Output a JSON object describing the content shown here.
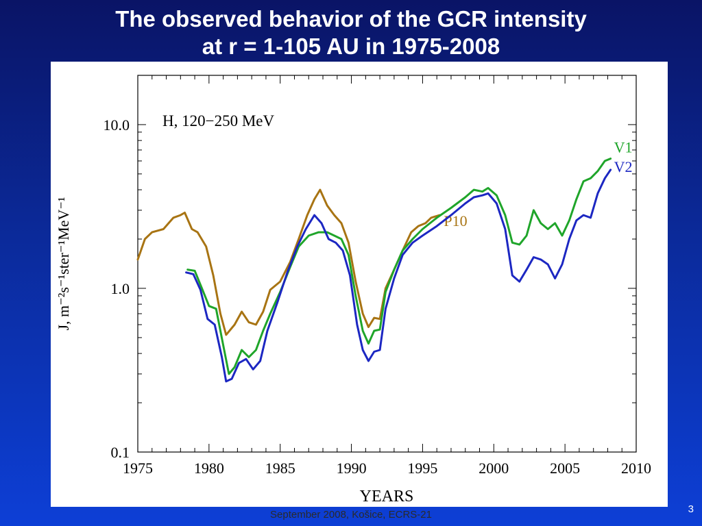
{
  "slide": {
    "title_line1": "The observed behavior of the GCR intensity",
    "title_line2": "at r = 1-105 AU  in 1975-2008",
    "footer": "September 2008, Košice, ECRS-21",
    "page_number": "3"
  },
  "chart_data": {
    "type": "line",
    "title": "",
    "annotation": "H, 120−250 MeV",
    "xlabel": "YEARS",
    "ylabel": "J, m⁻²s⁻¹ster⁻¹MeV⁻¹",
    "xlim": [
      1975,
      2010
    ],
    "ylim": [
      0.1,
      20
    ],
    "yscale": "log",
    "x_ticks": [
      "1975",
      "1980",
      "1985",
      "1990",
      "1995",
      "2000",
      "2005",
      "2010"
    ],
    "y_ticks": [
      "0.1",
      "1.0",
      "10.0"
    ],
    "grid": false,
    "legend": "inline labels at series ends",
    "series": [
      {
        "name": "P10",
        "color": "#a87413",
        "points": [
          [
            1975,
            1.5
          ],
          [
            1975.5,
            2.0
          ],
          [
            1976,
            2.2
          ],
          [
            1976.8,
            2.3
          ],
          [
            1977.5,
            2.7
          ],
          [
            1978,
            2.8
          ],
          [
            1978.3,
            2.9
          ],
          [
            1978.8,
            2.3
          ],
          [
            1979.2,
            2.2
          ],
          [
            1979.8,
            1.8
          ],
          [
            1980.3,
            1.2
          ],
          [
            1980.8,
            0.7
          ],
          [
            1981.2,
            0.52
          ],
          [
            1981.8,
            0.6
          ],
          [
            1982.3,
            0.72
          ],
          [
            1982.8,
            0.62
          ],
          [
            1983.3,
            0.6
          ],
          [
            1983.8,
            0.72
          ],
          [
            1984.3,
            0.98
          ],
          [
            1985,
            1.1
          ],
          [
            1985.7,
            1.45
          ],
          [
            1986.3,
            2.0
          ],
          [
            1986.9,
            2.8
          ],
          [
            1987.4,
            3.5
          ],
          [
            1987.8,
            4.0
          ],
          [
            1988.3,
            3.2
          ],
          [
            1988.8,
            2.8
          ],
          [
            1989.3,
            2.5
          ],
          [
            1989.8,
            1.9
          ],
          [
            1990.3,
            1.1
          ],
          [
            1990.8,
            0.7
          ],
          [
            1991.2,
            0.58
          ],
          [
            1991.6,
            0.66
          ],
          [
            1992,
            0.65
          ],
          [
            1992.4,
            1.0
          ],
          [
            1993,
            1.3
          ],
          [
            1993.6,
            1.7
          ],
          [
            1994.2,
            2.2
          ],
          [
            1994.7,
            2.4
          ],
          [
            1995.2,
            2.5
          ],
          [
            1995.6,
            2.7
          ],
          [
            1996.2,
            2.8
          ]
        ]
      },
      {
        "name": "V1",
        "color": "#1fa52a",
        "points": [
          [
            1978.5,
            1.3
          ],
          [
            1979,
            1.28
          ],
          [
            1979.5,
            1.0
          ],
          [
            1980,
            0.78
          ],
          [
            1980.5,
            0.75
          ],
          [
            1981,
            0.45
          ],
          [
            1981.4,
            0.3
          ],
          [
            1981.8,
            0.33
          ],
          [
            1982.3,
            0.42
          ],
          [
            1982.8,
            0.38
          ],
          [
            1983.3,
            0.42
          ],
          [
            1983.8,
            0.55
          ],
          [
            1984.3,
            0.7
          ],
          [
            1985,
            0.95
          ],
          [
            1985.7,
            1.35
          ],
          [
            1986.3,
            1.8
          ],
          [
            1987,
            2.1
          ],
          [
            1987.7,
            2.2
          ],
          [
            1988.3,
            2.2
          ],
          [
            1988.8,
            2.1
          ],
          [
            1989.3,
            2.0
          ],
          [
            1989.8,
            1.6
          ],
          [
            1990.3,
            0.9
          ],
          [
            1990.8,
            0.55
          ],
          [
            1991.2,
            0.46
          ],
          [
            1991.6,
            0.55
          ],
          [
            1992,
            0.56
          ],
          [
            1992.4,
            0.95
          ],
          [
            1993,
            1.3
          ],
          [
            1993.6,
            1.7
          ],
          [
            1994.3,
            2.0
          ],
          [
            1995,
            2.3
          ],
          [
            1996,
            2.7
          ],
          [
            1997,
            3.1
          ],
          [
            1998,
            3.6
          ],
          [
            1998.6,
            4.0
          ],
          [
            1999.2,
            3.9
          ],
          [
            1999.6,
            4.1
          ],
          [
            2000.2,
            3.7
          ],
          [
            2000.8,
            2.8
          ],
          [
            2001.3,
            1.9
          ],
          [
            2001.8,
            1.85
          ],
          [
            2002.3,
            2.1
          ],
          [
            2002.8,
            3.0
          ],
          [
            2003.3,
            2.5
          ],
          [
            2003.8,
            2.3
          ],
          [
            2004.3,
            2.5
          ],
          [
            2004.8,
            2.1
          ],
          [
            2005.3,
            2.6
          ],
          [
            2005.8,
            3.5
          ],
          [
            2006.3,
            4.5
          ],
          [
            2006.8,
            4.7
          ],
          [
            2007.3,
            5.2
          ],
          [
            2007.8,
            6.0
          ],
          [
            2008.2,
            6.2
          ]
        ]
      },
      {
        "name": "V2",
        "color": "#1c27c2",
        "points": [
          [
            1978.4,
            1.25
          ],
          [
            1978.9,
            1.22
          ],
          [
            1979.4,
            0.98
          ],
          [
            1979.9,
            0.65
          ],
          [
            1980.4,
            0.6
          ],
          [
            1980.9,
            0.38
          ],
          [
            1981.2,
            0.27
          ],
          [
            1981.6,
            0.28
          ],
          [
            1982.1,
            0.35
          ],
          [
            1982.6,
            0.37
          ],
          [
            1983.1,
            0.32
          ],
          [
            1983.6,
            0.36
          ],
          [
            1984.1,
            0.55
          ],
          [
            1984.8,
            0.82
          ],
          [
            1985.5,
            1.25
          ],
          [
            1986.2,
            1.8
          ],
          [
            1986.8,
            2.3
          ],
          [
            1987.4,
            2.8
          ],
          [
            1987.9,
            2.5
          ],
          [
            1988.4,
            2.0
          ],
          [
            1988.9,
            1.9
          ],
          [
            1989.4,
            1.7
          ],
          [
            1989.9,
            1.2
          ],
          [
            1990.4,
            0.6
          ],
          [
            1990.8,
            0.42
          ],
          [
            1991.2,
            0.36
          ],
          [
            1991.6,
            0.41
          ],
          [
            1992,
            0.42
          ],
          [
            1992.4,
            0.75
          ],
          [
            1993,
            1.15
          ],
          [
            1993.6,
            1.6
          ],
          [
            1994.3,
            1.9
          ],
          [
            1995,
            2.1
          ],
          [
            1996,
            2.4
          ],
          [
            1997,
            2.8
          ],
          [
            1998,
            3.3
          ],
          [
            1998.6,
            3.6
          ],
          [
            1999.2,
            3.7
          ],
          [
            1999.6,
            3.8
          ],
          [
            2000.2,
            3.3
          ],
          [
            2000.8,
            2.3
          ],
          [
            2001.3,
            1.2
          ],
          [
            2001.8,
            1.1
          ],
          [
            2002.3,
            1.3
          ],
          [
            2002.8,
            1.55
          ],
          [
            2003.3,
            1.5
          ],
          [
            2003.8,
            1.4
          ],
          [
            2004.3,
            1.15
          ],
          [
            2004.8,
            1.4
          ],
          [
            2005.3,
            2.0
          ],
          [
            2005.8,
            2.6
          ],
          [
            2006.3,
            2.8
          ],
          [
            2006.8,
            2.7
          ],
          [
            2007.3,
            3.8
          ],
          [
            2007.8,
            4.7
          ],
          [
            2008.2,
            5.3
          ]
        ]
      }
    ]
  }
}
